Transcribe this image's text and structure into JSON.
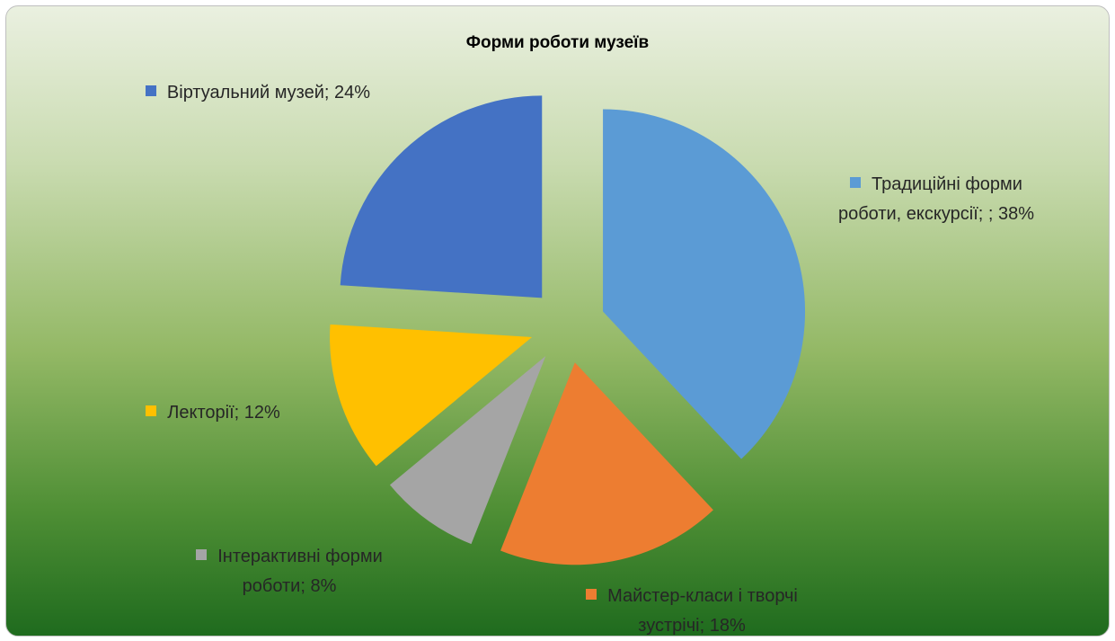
{
  "chart_data": {
    "type": "pie",
    "title": "Форми роботи музеїв",
    "categories": [
      "Традиційні форми роботи, екскурсії; ;",
      "Майстер-класи і творчі зустрічі;",
      "Інтерактивні форми роботи;",
      "Лекторії;",
      "Віртуальний музей;"
    ],
    "values": [
      38,
      18,
      8,
      12,
      24
    ],
    "value_labels": [
      "38%",
      "18%",
      "8%",
      "12%",
      "24%"
    ],
    "colors": [
      "#5b9bd5",
      "#ed7d31",
      "#a5a5a5",
      "#ffc000",
      "#4472c4"
    ]
  }
}
